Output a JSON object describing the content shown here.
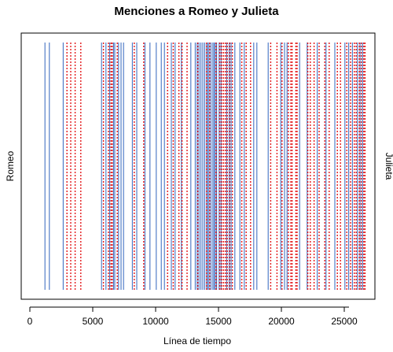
{
  "chart_data": {
    "type": "event-lines",
    "title": "Menciones a Romeo y Julieta",
    "xlabel": "Línea de tiempo",
    "xlim": [
      0,
      27000
    ],
    "x_ticks": [
      0,
      5000,
      10000,
      15000,
      20000,
      25000
    ],
    "series": [
      {
        "name": "Romeo",
        "color": "#4472C4",
        "line_style": "solid",
        "axis_side": "left",
        "x": [
          1200,
          1550,
          2650,
          5700,
          6050,
          6350,
          6650,
          6750,
          7050,
          7250,
          7450,
          8150,
          8500,
          9150,
          9550,
          10050,
          10450,
          10700,
          11250,
          11550,
          12050,
          12800,
          13150,
          13300,
          13450,
          13600,
          13750,
          13900,
          14050,
          14150,
          14250,
          14400,
          14550,
          14650,
          14750,
          14850,
          15050,
          15200,
          15650,
          15850,
          16000,
          16300,
          16700,
          17050,
          17800,
          18050,
          18950,
          19950,
          20250,
          20450,
          21450,
          22050,
          22850,
          23550,
          24250,
          25050,
          25350,
          25650,
          26050,
          26250,
          26450
        ]
      },
      {
        "name": "Julieta",
        "color": "#E41A1C",
        "line_style": "dotted",
        "axis_side": "right",
        "x": [
          2950,
          3250,
          3600,
          4050,
          5850,
          6250,
          6450,
          6550,
          6950,
          8300,
          9050,
          10950,
          11400,
          11850,
          12100,
          12500,
          13350,
          14050,
          14300,
          14800,
          15100,
          15250,
          15400,
          15550,
          15700,
          15900,
          16100,
          16850,
          17200,
          17550,
          19150,
          19650,
          20050,
          20550,
          20750,
          20850,
          21150,
          21250,
          22100,
          22300,
          22600,
          23000,
          23450,
          23800,
          24450,
          24700,
          25200,
          25500,
          25800,
          25950,
          26200,
          26350,
          26550,
          26650
        ]
      }
    ]
  }
}
